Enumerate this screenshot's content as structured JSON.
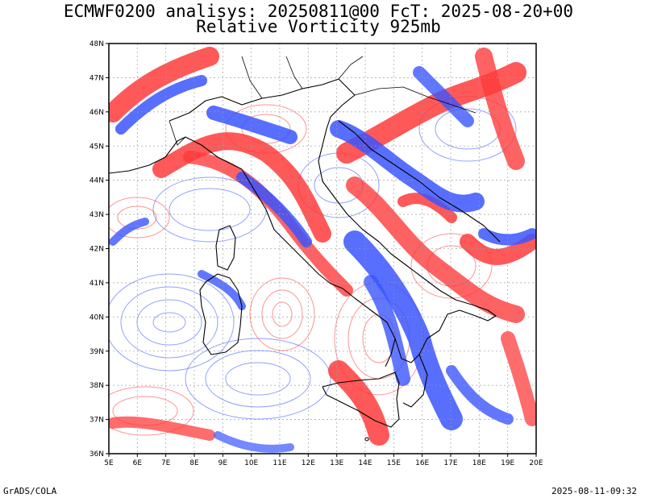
{
  "header": {
    "line1": "ECMWF0200 analisys: 20250811@00 FcT: 2025-08-20+00",
    "line2": "Relative Vorticity 925mb"
  },
  "map": {
    "lon_range": [
      5,
      20
    ],
    "lat_range": [
      36,
      48
    ],
    "x_tick_labels": [
      "5E",
      "6E",
      "7E",
      "8E",
      "9E",
      "10E",
      "11E",
      "12E",
      "13E",
      "14E",
      "15E",
      "16E",
      "17E",
      "18E",
      "19E",
      "20E"
    ],
    "y_tick_labels": [
      "36N",
      "37N",
      "38N",
      "39N",
      "40N",
      "41N",
      "42N",
      "43N",
      "44N",
      "45N",
      "46N",
      "47N",
      "48N"
    ],
    "colors": {
      "positive_vorticity": "#ff3b3b",
      "negative_vorticity": "#3a55ff",
      "coastline": "#000000",
      "gridline": "#999999"
    }
  },
  "footer": {
    "left": "GrADS/COLA",
    "right": "2025-08-11-09:32"
  }
}
